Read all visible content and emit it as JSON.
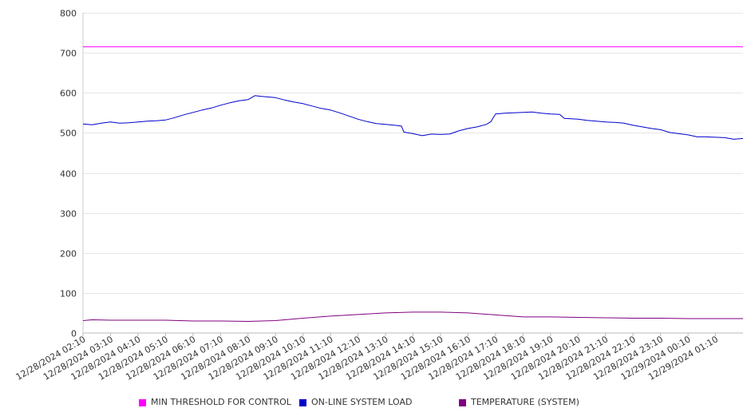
{
  "chart_data": {
    "type": "line",
    "title": "",
    "xlabel": "",
    "ylabel": "",
    "ylim": [
      0,
      800
    ],
    "yticks": [
      0,
      100,
      200,
      300,
      400,
      500,
      600,
      700,
      800
    ],
    "grid": "horizontal",
    "legend_position": "bottom",
    "x_labels": [
      "12/28/2024 02:10",
      "12/28/2024 03:10",
      "12/28/2024 04:10",
      "12/28/2024 05:10",
      "12/28/2024 06:10",
      "12/28/2024 07:10",
      "12/28/2024 08:10",
      "12/28/2024 09:10",
      "12/28/2024 10:10",
      "12/28/2024 11:10",
      "12/28/2024 12:10",
      "12/28/2024 13:10",
      "12/28/2024 14:10",
      "12/28/2024 15:10",
      "12/28/2024 16:10",
      "12/28/2024 17:10",
      "12/28/2024 18:10",
      "12/28/2024 19:10",
      "12/28/2024 20:10",
      "12/28/2024 21:10",
      "12/28/2024 22:10",
      "12/28/2024 23:10",
      "12/29/2024 00:10",
      "12/29/2024 01:10"
    ],
    "x_range": [
      "12/28/2024 02:10",
      "12/29/2024 02:10"
    ],
    "series": [
      {
        "name": "MIN THRESHOLD FOR CONTROL",
        "color": "#ff00ff",
        "points": [
          [
            "12/28/2024 02:10",
            715
          ],
          [
            "12/29/2024 02:10",
            715
          ]
        ]
      },
      {
        "name": "ON-LINE SYSTEM LOAD",
        "color": "#0000cc",
        "points": [
          [
            "12/28/2024 02:10",
            522
          ],
          [
            "12/28/2024 02:30",
            520
          ],
          [
            "12/28/2024 02:50",
            524
          ],
          [
            "12/28/2024 03:10",
            527
          ],
          [
            "12/28/2024 03:30",
            524
          ],
          [
            "12/28/2024 03:50",
            525
          ],
          [
            "12/28/2024 04:10",
            527
          ],
          [
            "12/28/2024 04:30",
            529
          ],
          [
            "12/28/2024 04:50",
            530
          ],
          [
            "12/28/2024 05:10",
            532
          ],
          [
            "12/28/2024 05:30",
            538
          ],
          [
            "12/28/2024 05:50",
            545
          ],
          [
            "12/28/2024 06:10",
            551
          ],
          [
            "12/28/2024 06:30",
            557
          ],
          [
            "12/28/2024 06:50",
            562
          ],
          [
            "12/28/2024 07:10",
            569
          ],
          [
            "12/28/2024 07:30",
            575
          ],
          [
            "12/28/2024 07:50",
            580
          ],
          [
            "12/28/2024 08:10",
            583
          ],
          [
            "12/28/2024 08:25",
            593
          ],
          [
            "12/28/2024 08:40",
            591
          ],
          [
            "12/28/2024 09:10",
            588
          ],
          [
            "12/28/2024 09:30",
            582
          ],
          [
            "12/28/2024 09:50",
            577
          ],
          [
            "12/28/2024 10:10",
            573
          ],
          [
            "12/28/2024 10:30",
            567
          ],
          [
            "12/28/2024 10:50",
            561
          ],
          [
            "12/28/2024 11:10",
            557
          ],
          [
            "12/28/2024 11:30",
            550
          ],
          [
            "12/28/2024 11:50",
            542
          ],
          [
            "12/28/2024 12:10",
            534
          ],
          [
            "12/28/2024 12:30",
            528
          ],
          [
            "12/28/2024 12:50",
            523
          ],
          [
            "12/28/2024 13:10",
            521
          ],
          [
            "12/28/2024 13:30",
            519
          ],
          [
            "12/28/2024 13:45",
            517
          ],
          [
            "12/28/2024 13:50",
            502
          ],
          [
            "12/28/2024 14:10",
            498
          ],
          [
            "12/28/2024 14:30",
            493
          ],
          [
            "12/28/2024 14:50",
            497
          ],
          [
            "12/28/2024 15:10",
            496
          ],
          [
            "12/28/2024 15:30",
            497
          ],
          [
            "12/28/2024 15:50",
            505
          ],
          [
            "12/28/2024 16:10",
            511
          ],
          [
            "12/28/2024 16:30",
            515
          ],
          [
            "12/28/2024 16:50",
            521
          ],
          [
            "12/28/2024 17:00",
            528
          ],
          [
            "12/28/2024 17:10",
            547
          ],
          [
            "12/28/2024 17:30",
            549
          ],
          [
            "12/28/2024 17:50",
            550
          ],
          [
            "12/28/2024 18:10",
            551
          ],
          [
            "12/28/2024 18:30",
            552
          ],
          [
            "12/28/2024 18:50",
            549
          ],
          [
            "12/28/2024 19:10",
            547
          ],
          [
            "12/28/2024 19:30",
            546
          ],
          [
            "12/28/2024 19:40",
            536
          ],
          [
            "12/28/2024 20:10",
            534
          ],
          [
            "12/28/2024 20:30",
            531
          ],
          [
            "12/28/2024 20:50",
            529
          ],
          [
            "12/28/2024 21:10",
            527
          ],
          [
            "12/28/2024 21:30",
            526
          ],
          [
            "12/28/2024 21:50",
            524
          ],
          [
            "12/28/2024 22:10",
            519
          ],
          [
            "12/28/2024 22:30",
            515
          ],
          [
            "12/28/2024 22:50",
            511
          ],
          [
            "12/28/2024 23:10",
            508
          ],
          [
            "12/28/2024 23:30",
            501
          ],
          [
            "12/28/2024 23:50",
            498
          ],
          [
            "12/29/2024 00:10",
            495
          ],
          [
            "12/29/2024 00:30",
            490
          ],
          [
            "12/29/2024 00:50",
            490
          ],
          [
            "12/29/2024 01:10",
            489
          ],
          [
            "12/29/2024 01:30",
            488
          ],
          [
            "12/29/2024 01:50",
            484
          ],
          [
            "12/29/2024 02:10",
            486
          ]
        ]
      },
      {
        "name": "TEMPERATURE (SYSTEM)",
        "color": "#800080",
        "points": [
          [
            "12/28/2024 02:10",
            31
          ],
          [
            "12/28/2024 02:30",
            33
          ],
          [
            "12/28/2024 03:10",
            32
          ],
          [
            "12/28/2024 04:10",
            32
          ],
          [
            "12/28/2024 05:10",
            32
          ],
          [
            "12/28/2024 06:10",
            30
          ],
          [
            "12/28/2024 07:10",
            30
          ],
          [
            "12/28/2024 08:10",
            29
          ],
          [
            "12/28/2024 09:10",
            31
          ],
          [
            "12/28/2024 10:10",
            37
          ],
          [
            "12/28/2024 11:10",
            42
          ],
          [
            "12/28/2024 12:10",
            46
          ],
          [
            "12/28/2024 13:10",
            50
          ],
          [
            "12/28/2024 14:10",
            52
          ],
          [
            "12/28/2024 15:10",
            52
          ],
          [
            "12/28/2024 16:10",
            50
          ],
          [
            "12/28/2024 17:10",
            45
          ],
          [
            "12/28/2024 18:10",
            40
          ],
          [
            "12/28/2024 19:10",
            40
          ],
          [
            "12/28/2024 20:10",
            39
          ],
          [
            "12/28/2024 21:10",
            38
          ],
          [
            "12/28/2024 22:10",
            37
          ],
          [
            "12/28/2024 23:10",
            37
          ],
          [
            "12/29/2024 00:10",
            36
          ],
          [
            "12/29/2024 01:10",
            36
          ],
          [
            "12/29/2024 02:10",
            36
          ]
        ]
      }
    ]
  }
}
